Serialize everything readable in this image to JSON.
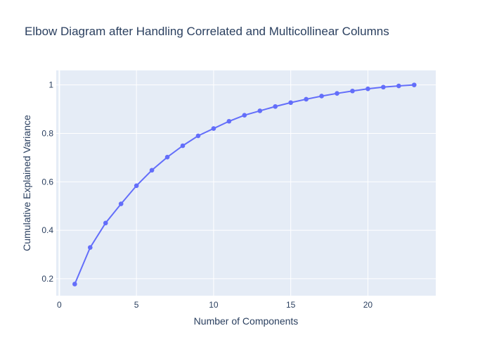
{
  "chart_data": {
    "type": "line",
    "title": "Elbow Diagram after Handling Correlated and Multicollinear Columns",
    "xlabel": "Number of Components",
    "ylabel": "Cumulative Explained Variance",
    "xlim": [
      -0.2,
      24.4
    ],
    "ylim": [
      0.13,
      1.06
    ],
    "x_ticks": [
      0,
      5,
      10,
      15,
      20
    ],
    "y_ticks": [
      0.2,
      0.4,
      0.6,
      0.8,
      1
    ],
    "grid": true,
    "line_color": "#636efa",
    "plot_bg": "#e5ecf6",
    "series": [
      {
        "x": [
          1,
          2,
          3,
          4,
          5,
          6,
          7,
          8,
          9,
          10,
          11,
          12,
          13,
          14,
          15,
          16,
          17,
          18,
          19,
          20,
          21,
          22,
          23
        ],
        "values": [
          0.178,
          0.329,
          0.43,
          0.509,
          0.584,
          0.648,
          0.702,
          0.749,
          0.79,
          0.82,
          0.85,
          0.875,
          0.893,
          0.911,
          0.927,
          0.941,
          0.954,
          0.965,
          0.975,
          0.984,
          0.991,
          0.996,
          1.0
        ]
      }
    ]
  }
}
